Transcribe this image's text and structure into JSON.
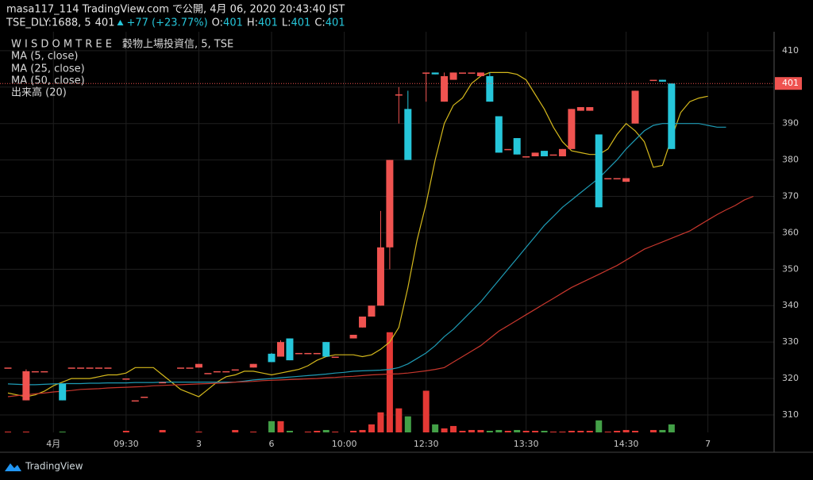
{
  "chart_data": {
    "type": "candlestick",
    "title": "masa117_114 TradingView.com で公開, 4月 06, 2020 20:43:40 JST",
    "quote": {
      "symbol": "TSE_DLY:1688, 5",
      "last": 401,
      "change": "+77 (+23.77%)",
      "fields": [
        {
          "label": "O:",
          "value": 401
        },
        {
          "label": "H:",
          "value": 401
        },
        {
          "label": "L:",
          "value": 401
        },
        {
          "label": "C:",
          "value": 401
        }
      ]
    },
    "instrument": "W I S D O M T R E E　穀物上場投資信, 5, TSE",
    "brand": "TradingView",
    "up_color": "#26c6da",
    "down_color": "#ef5350",
    "volume_up_color": "#43a047",
    "volume_down_color": "#e53935",
    "ylim": [
      305.2,
      415.2
    ],
    "yticks": [
      310,
      320,
      330,
      340,
      350,
      360,
      370,
      380,
      390,
      400,
      410
    ],
    "vlim": [
      0,
      500
    ],
    "grid": true,
    "categories": [
      null,
      null,
      null,
      null,
      null,
      "4月",
      null,
      null,
      null,
      null,
      null,
      null,
      null,
      "09:30",
      null,
      null,
      null,
      null,
      null,
      null,
      null,
      "3",
      null,
      null,
      null,
      null,
      null,
      null,
      null,
      "6",
      null,
      null,
      null,
      null,
      null,
      null,
      null,
      "10:00",
      null,
      null,
      null,
      null,
      null,
      null,
      null,
      null,
      "12:30",
      null,
      null,
      null,
      null,
      null,
      null,
      null,
      null,
      null,
      null,
      "13:30",
      null,
      null,
      null,
      null,
      null,
      null,
      null,
      null,
      null,
      null,
      "14:30",
      null,
      null,
      null,
      null,
      null,
      null,
      null,
      null,
      "7",
      null,
      null,
      null,
      null,
      null
    ],
    "ohlc": [
      [
        323,
        323,
        323,
        323
      ],
      null,
      [
        322,
        322.5,
        314,
        314
      ],
      [
        322,
        322,
        322,
        322
      ],
      [
        322,
        322,
        322,
        322
      ],
      null,
      [
        314,
        318.5,
        314,
        318.5
      ],
      [
        323,
        323,
        323,
        323
      ],
      [
        323,
        323,
        323,
        323
      ],
      [
        323,
        323,
        323,
        323
      ],
      [
        323,
        323,
        323,
        323
      ],
      [
        323,
        323,
        323,
        323
      ],
      null,
      [
        320,
        320,
        320,
        320
      ],
      [
        314,
        314,
        314,
        314
      ],
      [
        315,
        315,
        315,
        315
      ],
      null,
      [
        319,
        319,
        319,
        319
      ],
      null,
      [
        323,
        323,
        323,
        323
      ],
      [
        323,
        323,
        323,
        323
      ],
      [
        324,
        324,
        323,
        323
      ],
      [
        321.5,
        321.5,
        321.5,
        321.5
      ],
      [
        322,
        322,
        322,
        322
      ],
      [
        322,
        322,
        322,
        322
      ],
      [
        322.5,
        322.5,
        322.5,
        322.5
      ],
      null,
      [
        324,
        324,
        323,
        323
      ],
      null,
      [
        324.5,
        327,
        324.5,
        326.8
      ],
      [
        330,
        330.5,
        326,
        326
      ],
      [
        325,
        331,
        325,
        331
      ],
      [
        327,
        327,
        327,
        327
      ],
      [
        327,
        327,
        327,
        327
      ],
      [
        327,
        327,
        327,
        327
      ],
      [
        326,
        330,
        326,
        330
      ],
      [
        326,
        326,
        326,
        326
      ],
      null,
      [
        332,
        332,
        331,
        331
      ],
      [
        337,
        337,
        334,
        334
      ],
      [
        340,
        340,
        337,
        337
      ],
      [
        356,
        366,
        340,
        340
      ],
      [
        380,
        380,
        350,
        356
      ],
      [
        398,
        400,
        390,
        398
      ],
      [
        380,
        399,
        380,
        394
      ],
      null,
      [
        404,
        404,
        396,
        404
      ],
      [
        403.5,
        404,
        403.5,
        404
      ],
      [
        403,
        404,
        396,
        396
      ],
      [
        404,
        404,
        402,
        402
      ],
      [
        404,
        404,
        404,
        404
      ],
      [
        404,
        404,
        404,
        404
      ],
      [
        404,
        404,
        403,
        403
      ],
      [
        396,
        404,
        396,
        403
      ],
      [
        382,
        392,
        382,
        392
      ],
      [
        383,
        383,
        383,
        383
      ],
      [
        381.5,
        386,
        381.5,
        386
      ],
      [
        381,
        381,
        381,
        381
      ],
      [
        382,
        382,
        381,
        381
      ],
      [
        381,
        382.5,
        381,
        382.5
      ],
      [
        381.5,
        381.5,
        381.5,
        381.5
      ],
      [
        383,
        383,
        381,
        381
      ],
      [
        394,
        394,
        383,
        383
      ],
      [
        394.5,
        394.5,
        393.5,
        393.5
      ],
      [
        394.5,
        394.5,
        393.5,
        393.5
      ],
      [
        367,
        387,
        367,
        387
      ],
      [
        375,
        375,
        375,
        375
      ],
      [
        375,
        375,
        375,
        375
      ],
      [
        375,
        375,
        374,
        374
      ],
      [
        399,
        399,
        390,
        390
      ],
      null,
      [
        402,
        402,
        402,
        402
      ],
      [
        401.5,
        402,
        401.5,
        402
      ],
      [
        383,
        401,
        383,
        401
      ],
      null,
      null,
      null,
      null,
      null,
      null,
      null,
      null,
      null
    ],
    "volume": {
      "name": "出来高 (20)",
      "values": [
        1,
        null,
        1,
        null,
        null,
        null,
        1,
        null,
        null,
        null,
        null,
        null,
        null,
        2,
        null,
        null,
        null,
        3,
        null,
        null,
        null,
        1,
        null,
        null,
        null,
        3,
        null,
        1,
        null,
        14,
        14,
        2,
        null,
        1,
        2,
        3,
        1,
        null,
        2,
        3,
        10,
        25,
        125,
        30,
        20,
        null,
        52,
        10,
        5,
        8,
        2,
        3,
        3,
        2,
        3,
        2,
        3,
        2,
        2,
        2,
        1,
        1,
        2,
        2,
        2,
        15,
        1,
        2,
        3,
        2,
        null,
        3,
        3,
        10,
        null,
        null,
        null,
        null,
        null,
        null,
        null,
        null,
        null
      ]
    },
    "series": [
      {
        "name": "MA (5, close)",
        "color": "#d4b81c",
        "values": [
          316,
          315.5,
          315,
          315.5,
          316.5,
          318,
          319,
          320,
          320,
          320,
          320.5,
          321,
          321,
          321.5,
          323,
          323,
          323,
          321,
          319,
          317,
          316,
          315,
          317,
          319,
          320.5,
          321,
          322,
          322,
          321.5,
          321,
          321.5,
          322,
          322.5,
          323.5,
          325,
          326,
          326.5,
          326.5,
          326.5,
          326,
          326.5,
          328,
          330,
          334,
          345,
          358,
          368,
          380,
          390,
          395,
          397,
          401,
          403,
          404,
          404,
          404,
          403.5,
          402,
          398,
          394,
          389,
          385,
          382.5,
          382,
          381.5,
          381.5,
          383,
          387,
          390,
          388,
          385,
          378,
          378.5,
          386,
          393,
          396,
          397,
          397.5,
          null,
          null,
          null,
          null,
          null
        ]
      },
      {
        "name": "MA (25, close)",
        "color": "#1e9bb5",
        "values": [
          318.5,
          318.4,
          318.3,
          318.3,
          318.4,
          318.5,
          318.6,
          318.6,
          318.6,
          318.7,
          318.7,
          318.8,
          318.8,
          318.8,
          318.9,
          318.9,
          318.9,
          319,
          319,
          319,
          319,
          319,
          319,
          319,
          319,
          319,
          319.3,
          319.6,
          319.8,
          320,
          320.2,
          320.4,
          320.6,
          320.8,
          321,
          321.2,
          321.5,
          321.7,
          322,
          322.1,
          322.2,
          322.3,
          322.5,
          323,
          324,
          325.5,
          327,
          329,
          331.5,
          333.5,
          336,
          338.5,
          341,
          344,
          347,
          350,
          353,
          356,
          359,
          362,
          364.5,
          367,
          369,
          371,
          373,
          375,
          377.5,
          380,
          383,
          385.5,
          388,
          389.5,
          390,
          390,
          390,
          390,
          390,
          389.5,
          389,
          389,
          null,
          null,
          null
        ]
      },
      {
        "name": "MA (50, close)",
        "color": "#c8372d",
        "values": [
          315,
          315.3,
          315.5,
          315.8,
          316,
          316.3,
          316.5,
          316.7,
          317,
          317.1,
          317.2,
          317.4,
          317.5,
          317.6,
          317.7,
          317.8,
          318,
          318.1,
          318.2,
          318.3,
          318.4,
          318.5,
          318.6,
          318.7,
          318.8,
          319,
          319.1,
          319.2,
          319.4,
          319.5,
          319.6,
          319.7,
          319.8,
          319.9,
          320,
          320.2,
          320.3,
          320.5,
          320.6,
          320.8,
          321,
          321.1,
          321.2,
          321.3,
          321.5,
          321.8,
          322.1,
          322.5,
          323,
          324.5,
          326,
          327.5,
          329,
          331,
          333,
          334.5,
          336,
          337.5,
          339,
          340.5,
          342,
          343.5,
          345,
          346.2,
          347.4,
          348.6,
          349.8,
          351,
          352.5,
          354,
          355.5,
          356.5,
          357.5,
          358.5,
          359.5,
          360.5,
          362,
          363.5,
          365,
          366.3,
          367.5,
          369,
          370
        ]
      }
    ]
  }
}
